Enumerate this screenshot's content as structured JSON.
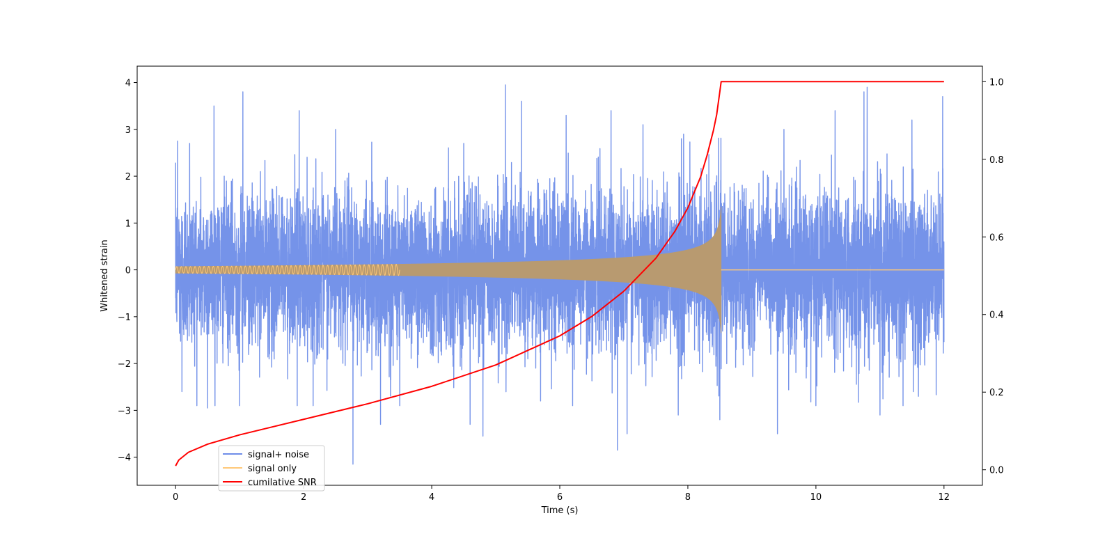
{
  "chart_data": {
    "type": "line",
    "title": "",
    "xlabel": "Time (s)",
    "ylabel": "Whitened strain",
    "y2label": "",
    "xlim": [
      -0.6,
      12.6
    ],
    "ylim": [
      -4.6,
      4.35
    ],
    "y2lim": [
      -0.04,
      1.04
    ],
    "xticks": [
      0,
      2,
      4,
      6,
      8,
      10,
      12
    ],
    "yticks": [
      -4,
      -3,
      -2,
      -1,
      0,
      1,
      2,
      3,
      4
    ],
    "y2ticks": [
      0.0,
      0.2,
      0.4,
      0.6,
      0.8,
      1.0
    ],
    "y2tick_labels": [
      "0.0",
      "0.2",
      "0.4",
      "0.6",
      "0.8",
      "1.0"
    ],
    "yticks_labels": [
      "−4",
      "−3",
      "−2",
      "−1",
      "0",
      "1",
      "2",
      "3",
      "4"
    ],
    "grid": false,
    "legend_position": "lower-left",
    "merger_time": 8.52,
    "series": [
      {
        "name": "signal+ noise",
        "color": "#6e8de8",
        "kind": "noise",
        "x_range": [
          0,
          12
        ],
        "typical_band": [
          -1.5,
          1.5
        ],
        "peaks": [
          [
            0.03,
            2.75
          ],
          [
            0.22,
            2.7
          ],
          [
            0.6,
            3.5
          ],
          [
            1.05,
            3.8
          ],
          [
            1.93,
            3.4
          ],
          [
            2.5,
            3.0
          ],
          [
            3.5,
            3.3
          ],
          [
            4.5,
            2.7
          ],
          [
            5.15,
            3.95
          ],
          [
            5.4,
            3.6
          ],
          [
            6.1,
            3.3
          ],
          [
            6.8,
            3.4
          ],
          [
            7.3,
            3.1
          ],
          [
            7.9,
            2.8
          ],
          [
            8.5,
            2.9
          ],
          [
            9.5,
            3.0
          ],
          [
            10.3,
            3.4
          ],
          [
            10.75,
            3.8
          ],
          [
            10.8,
            3.9
          ],
          [
            11.5,
            3.2
          ],
          [
            11.98,
            3.7
          ]
        ],
        "troughs": [
          [
            0.1,
            -2.6
          ],
          [
            0.5,
            -2.95
          ],
          [
            1.0,
            -2.9
          ],
          [
            1.9,
            -2.9
          ],
          [
            2.77,
            -4.15
          ],
          [
            3.2,
            -3.3
          ],
          [
            3.5,
            -2.9
          ],
          [
            4.6,
            -3.3
          ],
          [
            4.8,
            -3.55
          ],
          [
            5.7,
            -2.8
          ],
          [
            6.2,
            -2.9
          ],
          [
            6.9,
            -3.85
          ],
          [
            7.05,
            -3.5
          ],
          [
            7.85,
            -3.1
          ],
          [
            8.5,
            -3.2
          ],
          [
            9.4,
            -3.5
          ],
          [
            10.0,
            -2.9
          ],
          [
            11.0,
            -3.1
          ],
          [
            11.6,
            -2.7
          ]
        ]
      },
      {
        "name": "signal only",
        "color": "#ffc878",
        "kind": "chirp",
        "start_amplitude": 0.07,
        "peak_amplitude": 1.35,
        "end_time": 8.52
      },
      {
        "name": "cumilative SNR",
        "color": "#ff0000",
        "axis": "right",
        "x": [
          0,
          0.05,
          0.2,
          0.5,
          1,
          2,
          3,
          4,
          5,
          6,
          6.5,
          7,
          7.5,
          7.8,
          8.0,
          8.2,
          8.3,
          8.4,
          8.45,
          8.5,
          8.52,
          12
        ],
        "y": [
          0.01,
          0.025,
          0.045,
          0.066,
          0.09,
          0.13,
          0.17,
          0.215,
          0.27,
          0.345,
          0.395,
          0.46,
          0.545,
          0.615,
          0.675,
          0.755,
          0.81,
          0.875,
          0.915,
          0.975,
          1.0,
          1.0
        ]
      }
    ]
  }
}
